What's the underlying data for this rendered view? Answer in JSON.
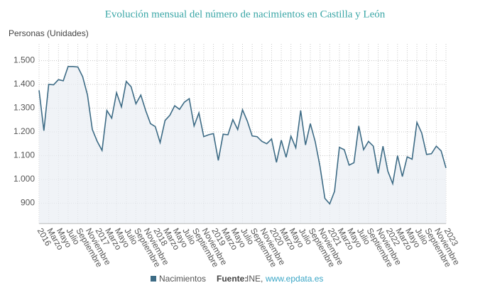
{
  "chart_data": {
    "type": "line",
    "title": "Evolución mensual del número de nacimientos en Castilla y León",
    "y_label": "Personas (Unidades)",
    "categories": [
      "2016",
      null,
      "Marzo",
      null,
      "Mayo",
      null,
      "Julio",
      null,
      "Septiembre",
      null,
      "Noviembre",
      null,
      "2017",
      null,
      "Marzo",
      null,
      "Mayo",
      null,
      "Julio",
      null,
      "Septiembre",
      null,
      "Noviembre",
      null,
      "2018",
      null,
      "Marzo",
      null,
      "Mayo",
      null,
      "Julio",
      null,
      "Septiembre",
      null,
      "Noviembre",
      null,
      "2019",
      null,
      "Marzo",
      null,
      "Mayo",
      null,
      "Julio",
      null,
      "Septiembre",
      null,
      "Noviembre",
      null,
      "2020",
      null,
      "Marzo",
      null,
      "Mayo",
      null,
      "Julio",
      null,
      "Septiembre",
      null,
      "Noviembre",
      null,
      "2021",
      null,
      "Marzo",
      null,
      "Mayo",
      null,
      "Julio",
      null,
      "Septiembre",
      null,
      "Noviembre",
      null,
      "2022",
      null,
      "Marzo",
      null,
      "Mayo",
      null,
      "Julio",
      null,
      "Septiembre",
      null,
      "Noviembre",
      null,
      "2023"
    ],
    "series": [
      {
        "name": "Nacimientos",
        "color": "#3d6b85",
        "values": [
          1375,
          1205,
          1400,
          1398,
          1420,
          1415,
          1475,
          1475,
          1473,
          1432,
          1355,
          1210,
          1160,
          1122,
          1290,
          1258,
          1365,
          1305,
          1412,
          1390,
          1318,
          1355,
          1290,
          1235,
          1222,
          1155,
          1248,
          1270,
          1310,
          1295,
          1325,
          1340,
          1225,
          1280,
          1180,
          1188,
          1193,
          1080,
          1190,
          1188,
          1252,
          1210,
          1293,
          1245,
          1183,
          1180,
          1160,
          1150,
          1170,
          1072,
          1165,
          1093,
          1182,
          1133,
          1290,
          1145,
          1235,
          1160,
          1055,
          920,
          897,
          950,
          1135,
          1125,
          1060,
          1070,
          1225,
          1125,
          1160,
          1140,
          1025,
          1140,
          1035,
          982,
          1100,
          1012,
          1095,
          1085,
          1240,
          1195,
          1105,
          1108,
          1140,
          1120,
          1048
        ]
      }
    ],
    "ylim": [
      815,
      1570
    ],
    "yticks": [
      900,
      {
        "value": 1000,
        "label": "1.000"
      },
      {
        "value": 1100,
        "label": "1.100"
      },
      {
        "value": 1200,
        "label": "1.200"
      },
      {
        "value": 1300,
        "label": "1.300"
      },
      {
        "value": 1400,
        "label": "1.400"
      },
      {
        "value": 1500,
        "label": "1.500"
      }
    ],
    "grid": true,
    "source_label": "Fuente:",
    "source": "INE,",
    "source_link": "www.epdata.es"
  }
}
